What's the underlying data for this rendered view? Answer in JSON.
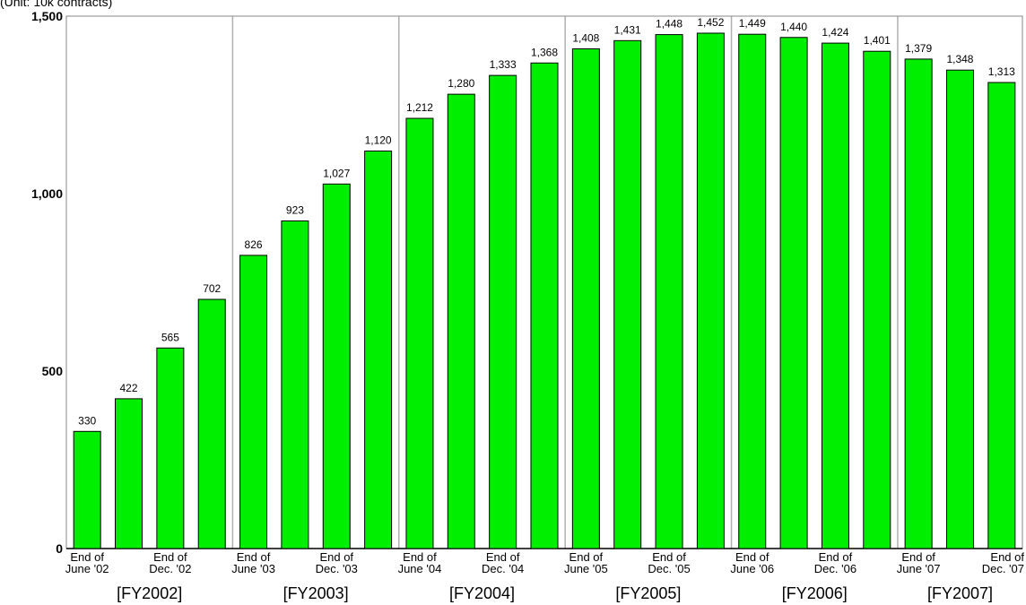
{
  "chart_data": {
    "type": "bar",
    "unit_label": "(Unit: 10k contracts)",
    "categories": [
      "End of June '02",
      "",
      "End of Dec. '02",
      "",
      "End of June '03",
      "",
      "End of Dec. '03",
      "",
      "End of June '04",
      "",
      "End of Dec. '04",
      "",
      "End of June '05",
      "",
      "End of Dec. '05",
      "",
      "End of June '06",
      "",
      "End of Dec. '06",
      "",
      "End of June '07",
      "",
      "End of Dec. '07"
    ],
    "category_lines": [
      [
        "End of",
        "June '02"
      ],
      null,
      [
        "End of",
        "Dec. '02"
      ],
      null,
      [
        "End of",
        "June '03"
      ],
      null,
      [
        "End of",
        "Dec. '03"
      ],
      null,
      [
        "End of",
        "June '04"
      ],
      null,
      [
        "End of",
        "Dec. '04"
      ],
      null,
      [
        "End of",
        "June '05"
      ],
      null,
      [
        "End of",
        "Dec. '05"
      ],
      null,
      [
        "End of",
        "June '06"
      ],
      null,
      [
        "End of",
        "Dec. '06"
      ],
      null,
      [
        "End of",
        "June '07"
      ],
      null,
      [
        "End of",
        "Dec. '07"
      ]
    ],
    "values": [
      330,
      422,
      565,
      702,
      826,
      923,
      1027,
      1120,
      1212,
      1280,
      1333,
      1368,
      1408,
      1431,
      1448,
      1452,
      1449,
      1440,
      1424,
      1401,
      1379,
      1348,
      1313
    ],
    "value_labels": [
      "330",
      "422",
      "565",
      "702",
      "826",
      "923",
      "1,027",
      "1,120",
      "1,212",
      "1,280",
      "1,333",
      "1,368",
      "1,408",
      "1,431",
      "1,448",
      "1,452",
      "1,449",
      "1,440",
      "1,424",
      "1,401",
      "1,379",
      "1,348",
      "1,313"
    ],
    "groups": [
      {
        "label": "[FY2002]",
        "first": 0,
        "last": 3
      },
      {
        "label": "[FY2003]",
        "first": 4,
        "last": 7
      },
      {
        "label": "[FY2004]",
        "first": 8,
        "last": 11
      },
      {
        "label": "[FY2005]",
        "first": 12,
        "last": 15
      },
      {
        "label": "[FY2006]",
        "first": 16,
        "last": 19
      },
      {
        "label": "[FY2007]",
        "first": 20,
        "last": 22
      }
    ],
    "y_ticks": [
      0,
      500,
      1000,
      1500
    ],
    "y_tick_labels": [
      "0",
      "500",
      "1,000",
      "1,500"
    ],
    "ylim": [
      0,
      1500
    ],
    "grid": false,
    "legend": "none",
    "bar_color": "#00ee00",
    "bar_border": "#000000",
    "separator_color": "#b0b0b0"
  }
}
